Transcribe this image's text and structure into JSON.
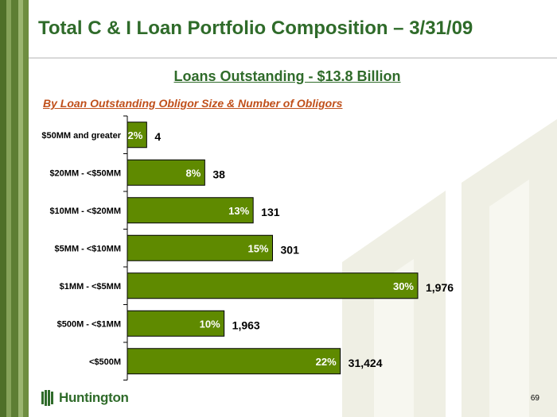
{
  "slide": {
    "title": "Total C & I Loan Portfolio Composition – 3/31/09",
    "subtitle": "Loans Outstanding - $13.8 Billion",
    "section_label": "By Loan Outstanding Obligor Size & Number of  Obligors",
    "logo_text": "Huntington",
    "page_number": "69"
  },
  "colors": {
    "brand_green": "#2f6b2a",
    "bar_fill": "#5f8a00",
    "accent_orange": "#c0501b",
    "sidebar_stripes": [
      "#4f7028",
      "#86a35a",
      "#5d7e33",
      "#9bb570",
      "#6e8d40"
    ]
  },
  "chart_data": {
    "type": "bar",
    "orientation": "horizontal",
    "title": "",
    "xlabel": "",
    "ylabel": "",
    "categories": [
      "$50MM and greater",
      "$20MM - <$50MM",
      "$10MM - <$20MM",
      "$5MM - <$10MM",
      "$1MM - <$5MM",
      "$500M - <$1MM",
      "<$500M"
    ],
    "series": [
      {
        "name": "",
        "values": [
          2,
          8,
          13,
          15,
          30,
          10,
          22
        ],
        "labels": [
          "2%",
          "8%",
          "13%",
          "15%",
          "30%",
          "10%",
          "22%"
        ]
      }
    ],
    "obligor_counts": [
      "4",
      "38",
      "131",
      "301",
      "1,976",
      "1,963",
      "31,424"
    ],
    "value_unit": "% of loans outstanding",
    "xlim": [
      0,
      32
    ],
    "grid": false,
    "legend": "none"
  }
}
